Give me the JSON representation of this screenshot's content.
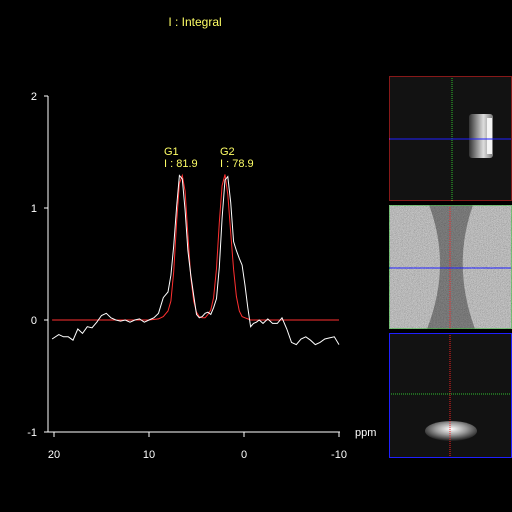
{
  "legend": {
    "text": "I : Integral"
  },
  "x_axis": {
    "unit": "ppm",
    "ticks": [
      "20",
      "10",
      "0",
      "-10"
    ]
  },
  "y_axis": {
    "ticks": [
      "2",
      "1",
      "0",
      "-1"
    ]
  },
  "peaks": [
    {
      "name": "G1",
      "integral": "I : 81.9"
    },
    {
      "name": "G2",
      "integral": "I : 78.9"
    }
  ],
  "colors": {
    "background": "#000000",
    "axis": "#ffffff",
    "spectrum": "#ffffff",
    "fit": "#ff3030",
    "annotation": "#ffff66",
    "crosshair_red": "#ff2020",
    "crosshair_green": "#30c030",
    "crosshair_blue": "#2020ff"
  },
  "views": [
    {
      "name": "sagittal-view",
      "border": "#ff2020",
      "v_line": "#30c030",
      "h_line": "#2020ff"
    },
    {
      "name": "axial-view",
      "border": "#30c030",
      "v_line": "#ff2020",
      "h_line": "#2020ff"
    },
    {
      "name": "coronal-view",
      "border": "#2020ff",
      "v_line": "#ff2020",
      "h_line": "#30c030"
    }
  ],
  "chart_data": {
    "type": "line",
    "xlabel": "ppm",
    "ylabel": "",
    "xlim": [
      20,
      -10
    ],
    "ylim": [
      -1,
      2
    ],
    "series": [
      {
        "x": [
          20.2,
          19.5,
          19,
          18.5,
          18,
          17.5,
          17,
          16.5,
          16,
          15.5,
          15,
          14.5,
          14,
          13.5,
          13,
          12.5,
          12,
          11.5,
          11,
          10.5,
          10,
          9.5,
          9,
          8.5,
          8,
          7.7,
          7.4,
          7.1,
          6.8,
          6.5,
          6.2,
          5.9,
          5.6,
          5.3,
          5,
          4.7,
          4.4,
          4.1,
          3.8,
          3.5,
          3.2,
          2.9,
          2.6,
          2.3,
          2,
          1.7,
          1.4,
          1.1,
          0.8,
          0.5,
          0.2,
          -0.1,
          -0.4,
          -0.7,
          -1,
          -1.3,
          -1.6,
          -2,
          -2.5,
          -3,
          -3.5,
          -4,
          -4.5,
          -5,
          -5.5,
          -6,
          -6.5,
          -7,
          -7.5,
          -8,
          -8.5,
          -9,
          -9.5,
          -10
        ],
        "y": [
          -0.17,
          -0.13,
          -0.15,
          -0.15,
          -0.18,
          -0.08,
          -0.12,
          -0.06,
          -0.07,
          -0.02,
          0.04,
          0.06,
          0.02,
          0.0,
          -0.01,
          0.0,
          -0.02,
          0.0,
          0.01,
          -0.02,
          0.0,
          0.02,
          0.06,
          0.2,
          0.25,
          0.4,
          0.66,
          1.01,
          1.29,
          1.26,
          0.98,
          0.62,
          0.4,
          0.22,
          0.05,
          0.02,
          0.03,
          0.06,
          0.07,
          0.05,
          0.11,
          0.19,
          0.47,
          0.91,
          1.25,
          1.28,
          1.05,
          0.7,
          0.62,
          0.55,
          0.49,
          0.31,
          0.11,
          -0.06,
          -0.03,
          -0.02,
          0.0,
          -0.03,
          0.01,
          -0.03,
          -0.03,
          0.02,
          -0.08,
          -0.2,
          -0.22,
          -0.17,
          -0.15,
          -0.18,
          -0.22,
          -0.2,
          -0.17,
          -0.16,
          -0.15,
          -0.22
        ]
      },
      {
        "x": [
          20.2,
          14,
          12,
          10,
          9,
          8.5,
          8,
          7.7,
          7.4,
          7.1,
          6.8,
          6.5,
          6.2,
          5.9,
          5.6,
          5.3,
          5,
          4.7,
          4.4,
          4.1,
          3.8,
          3.5,
          3.2,
          2.9,
          2.6,
          2.3,
          2,
          1.7,
          1.4,
          1.1,
          0.8,
          0.5,
          0.2,
          -0.1,
          -0.4,
          -0.7,
          -1,
          -2,
          -4,
          -6,
          -8,
          -10
        ],
        "y": [
          0.0,
          0.0,
          0.0,
          0.0,
          0.01,
          0.03,
          0.08,
          0.17,
          0.43,
          0.87,
          1.22,
          1.29,
          1.15,
          0.76,
          0.38,
          0.17,
          0.07,
          0.03,
          0.02,
          0.02,
          0.05,
          0.09,
          0.2,
          0.46,
          0.87,
          1.2,
          1.3,
          1.12,
          0.78,
          0.45,
          0.21,
          0.08,
          0.03,
          0.02,
          0.01,
          0.0,
          0.0,
          0.0,
          0.0,
          0.0,
          0.0,
          0.0
        ]
      }
    ]
  }
}
